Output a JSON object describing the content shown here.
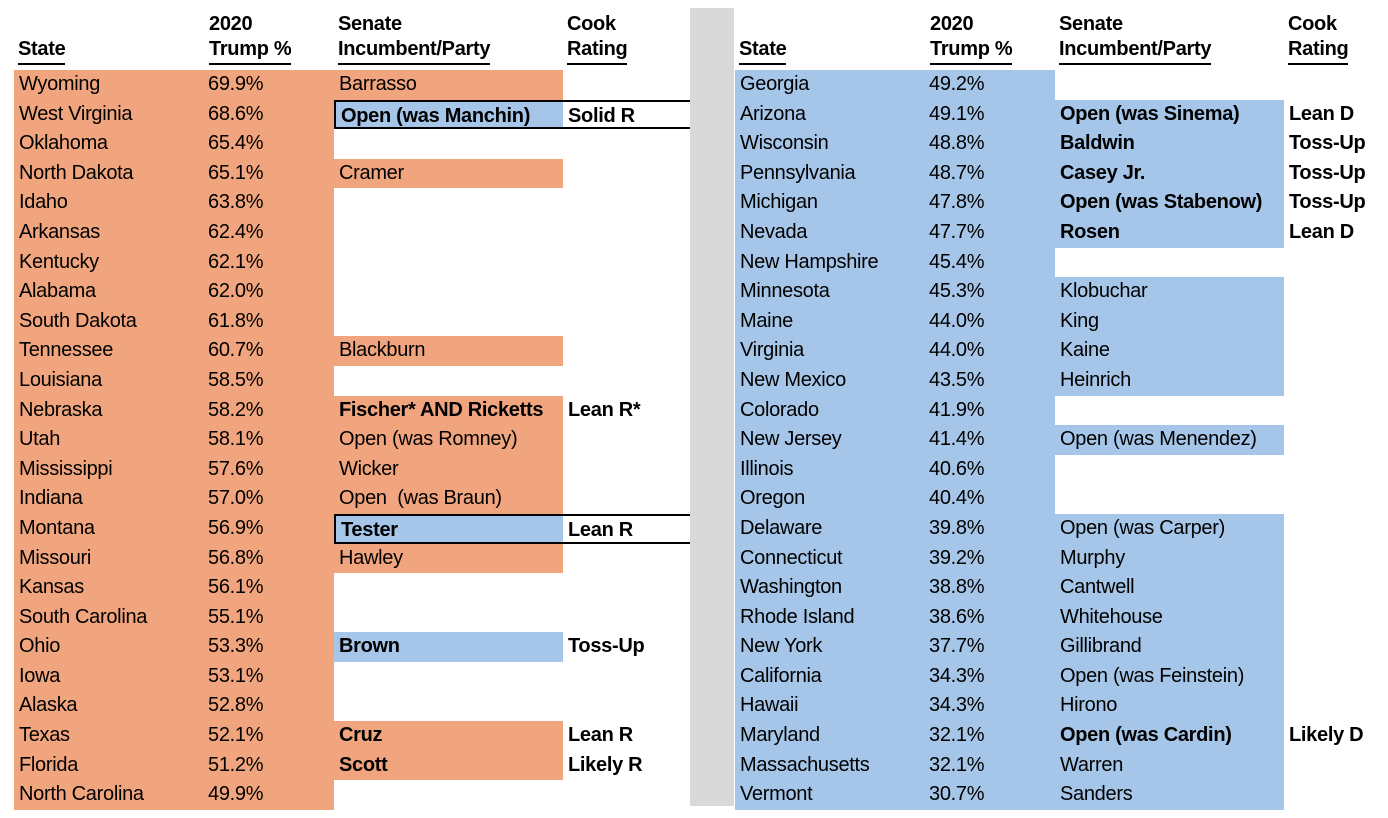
{
  "colors": {
    "republican_fill": "#F1A57E",
    "democrat_fill": "#A5C6E8",
    "divider_gray": "#D9D9D9",
    "box_border": "#000000"
  },
  "header": {
    "state": "State",
    "trump_line1": "2020",
    "trump_line2": "Trump %",
    "incumbent_line1": "Senate",
    "incumbent_line2": "Incumbent/Party",
    "cook_line1": "Cook",
    "cook_line2": "Rating"
  },
  "chart_data": [
    {
      "type": "table",
      "party": "R",
      "columns": [
        "State",
        "2020 Trump %",
        "Senate Incumbent/Party",
        "Cook Rating"
      ],
      "rows": [
        {
          "state": "Wyoming",
          "trump_pct": "69.9%",
          "incumbent": "Barrasso",
          "fill": "R",
          "bold": false,
          "rating": "",
          "boxed": false
        },
        {
          "state": "West Virginia",
          "trump_pct": "68.6%",
          "incumbent": "Open (was Manchin)",
          "fill": "D",
          "bold": true,
          "rating": "Solid R",
          "boxed": true
        },
        {
          "state": "Oklahoma",
          "trump_pct": "65.4%",
          "incumbent": "",
          "fill": "",
          "bold": false,
          "rating": "",
          "boxed": false
        },
        {
          "state": "North Dakota",
          "trump_pct": "65.1%",
          "incumbent": "Cramer",
          "fill": "R",
          "bold": false,
          "rating": "",
          "boxed": false
        },
        {
          "state": "Idaho",
          "trump_pct": "63.8%",
          "incumbent": "",
          "fill": "",
          "bold": false,
          "rating": "",
          "boxed": false
        },
        {
          "state": "Arkansas",
          "trump_pct": "62.4%",
          "incumbent": "",
          "fill": "",
          "bold": false,
          "rating": "",
          "boxed": false
        },
        {
          "state": "Kentucky",
          "trump_pct": "62.1%",
          "incumbent": "",
          "fill": "",
          "bold": false,
          "rating": "",
          "boxed": false
        },
        {
          "state": "Alabama",
          "trump_pct": "62.0%",
          "incumbent": "",
          "fill": "",
          "bold": false,
          "rating": "",
          "boxed": false
        },
        {
          "state": "South Dakota",
          "trump_pct": "61.8%",
          "incumbent": "",
          "fill": "",
          "bold": false,
          "rating": "",
          "boxed": false
        },
        {
          "state": "Tennessee",
          "trump_pct": "60.7%",
          "incumbent": "Blackburn",
          "fill": "R",
          "bold": false,
          "rating": "",
          "boxed": false
        },
        {
          "state": "Louisiana",
          "trump_pct": "58.5%",
          "incumbent": "",
          "fill": "",
          "bold": false,
          "rating": "",
          "boxed": false
        },
        {
          "state": "Nebraska",
          "trump_pct": "58.2%",
          "incumbent": "Fischer* AND Ricketts",
          "fill": "R",
          "bold": true,
          "rating": "Lean R*",
          "boxed": false
        },
        {
          "state": "Utah",
          "trump_pct": "58.1%",
          "incumbent": "Open (was Romney)",
          "fill": "R",
          "bold": false,
          "rating": "",
          "boxed": false
        },
        {
          "state": "Mississippi",
          "trump_pct": "57.6%",
          "incumbent": "Wicker",
          "fill": "R",
          "bold": false,
          "rating": "",
          "boxed": false
        },
        {
          "state": "Indiana",
          "trump_pct": "57.0%",
          "incumbent": "Open  (was Braun)",
          "fill": "R",
          "bold": false,
          "rating": "",
          "boxed": false
        },
        {
          "state": "Montana",
          "trump_pct": "56.9%",
          "incumbent": "Tester",
          "fill": "D",
          "bold": true,
          "rating": "Lean R",
          "boxed": true
        },
        {
          "state": "Missouri",
          "trump_pct": "56.8%",
          "incumbent": "Hawley",
          "fill": "R",
          "bold": false,
          "rating": "",
          "boxed": false
        },
        {
          "state": "Kansas",
          "trump_pct": "56.1%",
          "incumbent": "",
          "fill": "",
          "bold": false,
          "rating": "",
          "boxed": false
        },
        {
          "state": "South Carolina",
          "trump_pct": "55.1%",
          "incumbent": "",
          "fill": "",
          "bold": false,
          "rating": "",
          "boxed": false
        },
        {
          "state": "Ohio",
          "trump_pct": "53.3%",
          "incumbent": "Brown",
          "fill": "D",
          "bold": true,
          "rating": "Toss-Up",
          "boxed": false
        },
        {
          "state": "Iowa",
          "trump_pct": "53.1%",
          "incumbent": "",
          "fill": "",
          "bold": false,
          "rating": "",
          "boxed": false
        },
        {
          "state": "Alaska",
          "trump_pct": "52.8%",
          "incumbent": "",
          "fill": "",
          "bold": false,
          "rating": "",
          "boxed": false
        },
        {
          "state": "Texas",
          "trump_pct": "52.1%",
          "incumbent": "Cruz",
          "fill": "R",
          "bold": true,
          "rating": "Lean R",
          "boxed": false
        },
        {
          "state": "Florida",
          "trump_pct": "51.2%",
          "incumbent": "Scott",
          "fill": "R",
          "bold": true,
          "rating": "Likely R",
          "boxed": false
        },
        {
          "state": "North Carolina",
          "trump_pct": "49.9%",
          "incumbent": "",
          "fill": "",
          "bold": false,
          "rating": "",
          "boxed": false
        }
      ]
    },
    {
      "type": "table",
      "party": "D",
      "columns": [
        "State",
        "2020 Trump %",
        "Senate Incumbent/Party",
        "Cook Rating"
      ],
      "rows": [
        {
          "state": "Georgia",
          "trump_pct": "49.2%",
          "incumbent": "",
          "fill": "",
          "bold": false,
          "rating": "",
          "boxed": false
        },
        {
          "state": "Arizona",
          "trump_pct": "49.1%",
          "incumbent": "Open (was Sinema)",
          "fill": "D",
          "bold": true,
          "rating": "Lean D",
          "boxed": false
        },
        {
          "state": "Wisconsin",
          "trump_pct": "48.8%",
          "incumbent": "Baldwin",
          "fill": "D",
          "bold": true,
          "rating": "Toss-Up",
          "boxed": false
        },
        {
          "state": "Pennsylvania",
          "trump_pct": "48.7%",
          "incumbent": "Casey Jr.",
          "fill": "D",
          "bold": true,
          "rating": "Toss-Up",
          "boxed": false
        },
        {
          "state": "Michigan",
          "trump_pct": "47.8%",
          "incumbent": "Open (was Stabenow)",
          "fill": "D",
          "bold": true,
          "rating": "Toss-Up",
          "boxed": false
        },
        {
          "state": "Nevada",
          "trump_pct": "47.7%",
          "incumbent": "Rosen",
          "fill": "D",
          "bold": true,
          "rating": "Lean D",
          "boxed": false
        },
        {
          "state": "New Hampshire",
          "trump_pct": "45.4%",
          "incumbent": "",
          "fill": "",
          "bold": false,
          "rating": "",
          "boxed": false
        },
        {
          "state": "Minnesota",
          "trump_pct": "45.3%",
          "incumbent": "Klobuchar",
          "fill": "D",
          "bold": false,
          "rating": "",
          "boxed": false
        },
        {
          "state": "Maine",
          "trump_pct": "44.0%",
          "incumbent": "King",
          "fill": "D",
          "bold": false,
          "rating": "",
          "boxed": false
        },
        {
          "state": "Virginia",
          "trump_pct": "44.0%",
          "incumbent": "Kaine",
          "fill": "D",
          "bold": false,
          "rating": "",
          "boxed": false
        },
        {
          "state": "New Mexico",
          "trump_pct": "43.5%",
          "incumbent": "Heinrich",
          "fill": "D",
          "bold": false,
          "rating": "",
          "boxed": false
        },
        {
          "state": "Colorado",
          "trump_pct": "41.9%",
          "incumbent": "",
          "fill": "",
          "bold": false,
          "rating": "",
          "boxed": false
        },
        {
          "state": "New Jersey",
          "trump_pct": "41.4%",
          "incumbent": "Open (was Menendez)",
          "fill": "D",
          "bold": false,
          "rating": "",
          "boxed": false
        },
        {
          "state": "Illinois",
          "trump_pct": "40.6%",
          "incumbent": "",
          "fill": "",
          "bold": false,
          "rating": "",
          "boxed": false
        },
        {
          "state": "Oregon",
          "trump_pct": "40.4%",
          "incumbent": "",
          "fill": "",
          "bold": false,
          "rating": "",
          "boxed": false
        },
        {
          "state": "Delaware",
          "trump_pct": "39.8%",
          "incumbent": "Open (was Carper)",
          "fill": "D",
          "bold": false,
          "rating": "",
          "boxed": false
        },
        {
          "state": "Connecticut",
          "trump_pct": "39.2%",
          "incumbent": "Murphy",
          "fill": "D",
          "bold": false,
          "rating": "",
          "boxed": false
        },
        {
          "state": "Washington",
          "trump_pct": "38.8%",
          "incumbent": "Cantwell",
          "fill": "D",
          "bold": false,
          "rating": "",
          "boxed": false
        },
        {
          "state": "Rhode Island",
          "trump_pct": "38.6%",
          "incumbent": "Whitehouse",
          "fill": "D",
          "bold": false,
          "rating": "",
          "boxed": false
        },
        {
          "state": "New York",
          "trump_pct": "37.7%",
          "incumbent": "Gillibrand",
          "fill": "D",
          "bold": false,
          "rating": "",
          "boxed": false
        },
        {
          "state": "California",
          "trump_pct": "34.3%",
          "incumbent": "Open (was Feinstein)",
          "fill": "D",
          "bold": false,
          "rating": "",
          "boxed": false
        },
        {
          "state": "Hawaii",
          "trump_pct": "34.3%",
          "incumbent": "Hirono",
          "fill": "D",
          "bold": false,
          "rating": "",
          "boxed": false
        },
        {
          "state": "Maryland",
          "trump_pct": "32.1%",
          "incumbent": "Open (was Cardin)",
          "fill": "D",
          "bold": true,
          "rating": "Likely D",
          "boxed": false
        },
        {
          "state": "Massachusetts",
          "trump_pct": "32.1%",
          "incumbent": "Warren",
          "fill": "D",
          "bold": false,
          "rating": "",
          "boxed": false
        },
        {
          "state": "Vermont",
          "trump_pct": "30.7%",
          "incumbent": "Sanders",
          "fill": "D",
          "bold": false,
          "rating": "",
          "boxed": false
        }
      ]
    }
  ]
}
